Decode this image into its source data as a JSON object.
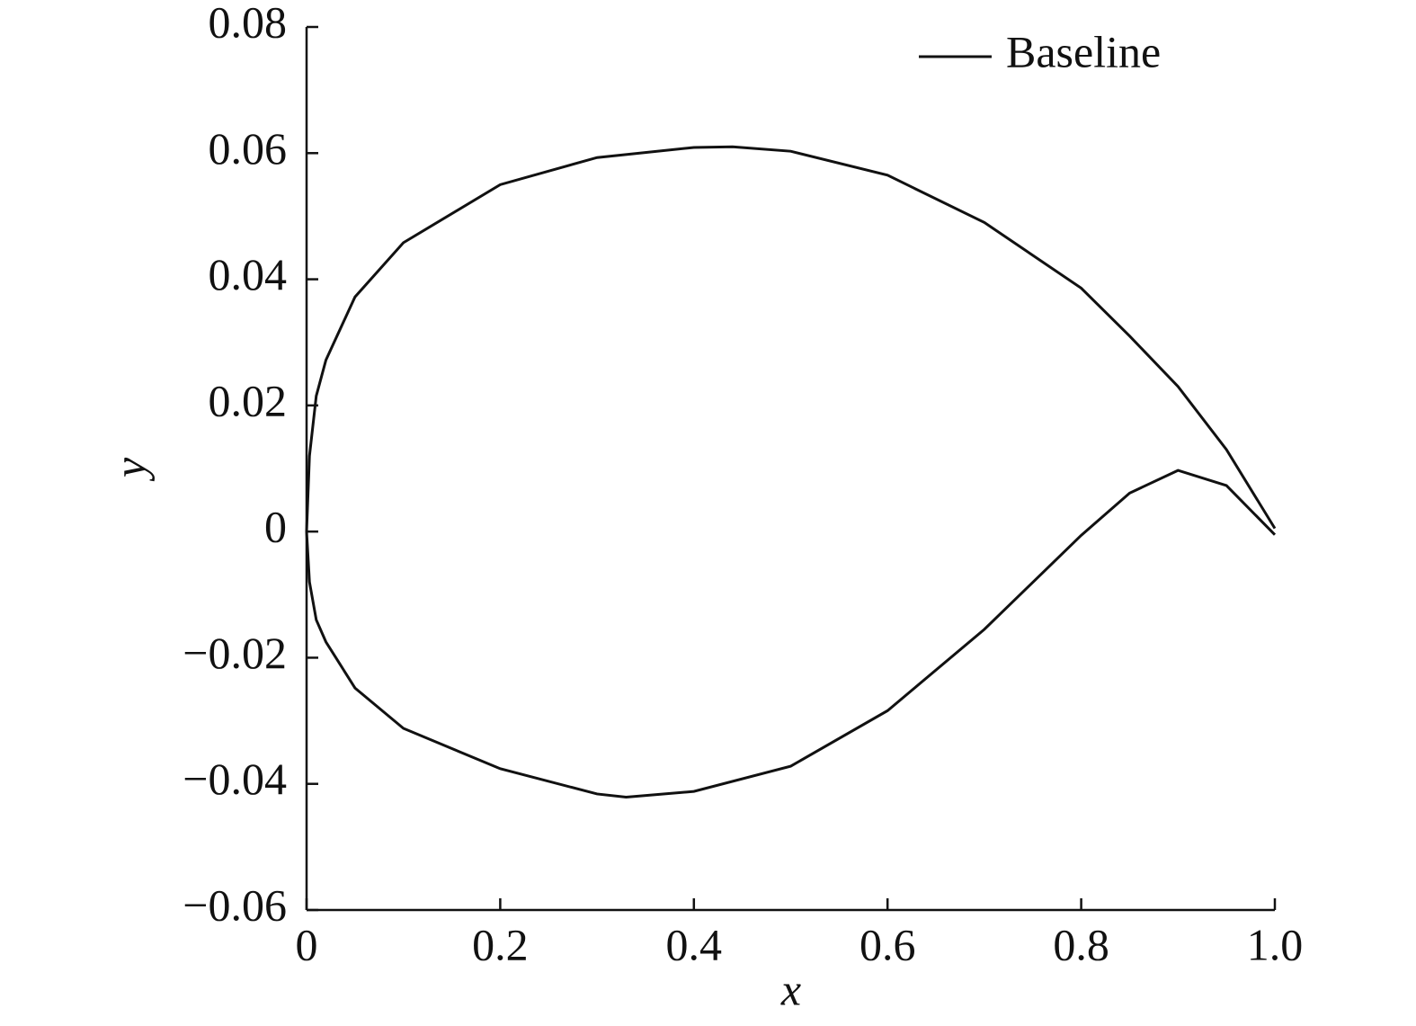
{
  "chart_data": {
    "type": "line",
    "xlabel": "x",
    "ylabel": "y",
    "legend": "upper right",
    "series": [
      {
        "name": "Baseline",
        "color": "#111111",
        "x": [
          1.0,
          0.95,
          0.9,
          0.85,
          0.8,
          0.7,
          0.6,
          0.5,
          0.44,
          0.4,
          0.3,
          0.2,
          0.1,
          0.05,
          0.02,
          0.01,
          0.003,
          0,
          0.003,
          0.01,
          0.02,
          0.05,
          0.1,
          0.2,
          0.3,
          0.33,
          0.4,
          0.5,
          0.6,
          0.7,
          0.8,
          0.85,
          0.9,
          0.95,
          1.0
        ],
        "values": [
          0.0005,
          0.013,
          0.023,
          0.031,
          0.0386,
          0.049,
          0.0565,
          0.0603,
          0.061,
          0.0609,
          0.0593,
          0.055,
          0.0458,
          0.0372,
          0.0272,
          0.0215,
          0.012,
          0,
          -0.008,
          -0.014,
          -0.0175,
          -0.0248,
          -0.0312,
          -0.0376,
          -0.0416,
          -0.0421,
          -0.0412,
          -0.0372,
          -0.0284,
          -0.0155,
          -0.0006,
          0.0061,
          0.0097,
          0.0073,
          -0.0005
        ]
      }
    ],
    "xlim": [
      0,
      1.0
    ],
    "ylim": [
      -0.06,
      0.08
    ],
    "xticks": [
      0,
      0.2,
      0.4,
      0.6,
      0.8,
      {
        "value": 1.0,
        "label": "1.0"
      }
    ],
    "yticks": [
      {
        "value": -0.06,
        "label": "−0.06"
      },
      {
        "value": -0.04,
        "label": "−0.04"
      },
      {
        "value": -0.02,
        "label": "−0.02"
      },
      0,
      0.02,
      0.04,
      0.06,
      0.08
    ]
  }
}
